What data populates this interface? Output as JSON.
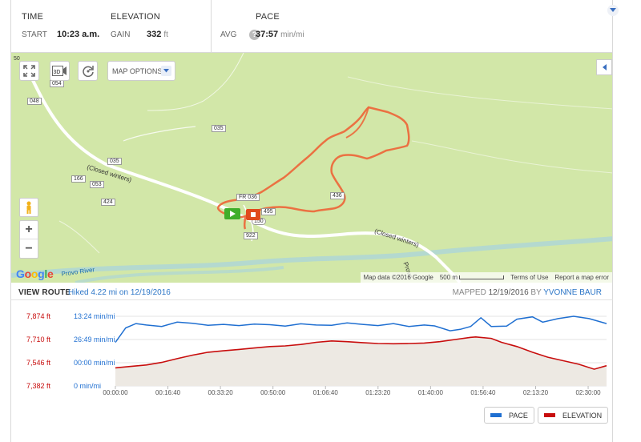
{
  "stats": {
    "time_label": "TIME",
    "start_label": "START",
    "start_value": "10:23 a.m.",
    "elevation_label": "ELEVATION",
    "gain_label": "GAIN",
    "gain_value": "332",
    "gain_unit": "ft",
    "pace_label": "PACE",
    "avg_label": "AVG",
    "avg_help": "?",
    "avg_value": "37:57",
    "avg_unit": "min/mi"
  },
  "map": {
    "options_label": "MAP OPTIONS",
    "btn_3d": "3D",
    "road_labels": [
      "054",
      "048",
      "035",
      "035",
      "166",
      "053",
      "424",
      "436",
      "922",
      "FR 036",
      "150",
      "495",
      "50"
    ],
    "closed_winters": "(Closed winters)",
    "provo_river": "Provo River",
    "provo_road": "Provo",
    "google_logo": "Google",
    "attribution": {
      "map_data": "Map data ©2016 Google",
      "scale": "500 m",
      "terms": "Terms of Use",
      "report": "Report a map error"
    }
  },
  "route_bar": {
    "title": "VIEW ROUTE",
    "hiked": "Hiked 4.22 mi on 12/19/2016",
    "mapped_label": "MAPPED",
    "mapped_date": "12/19/2016",
    "by_label": "BY",
    "mapped_user": "YVONNE BAUR"
  },
  "legend": {
    "pace": "PACE",
    "elevation": "ELEVATION",
    "pace_color": "#1f6fd1",
    "elevation_color": "#c80d0d"
  },
  "chart_data": {
    "type": "line",
    "x_unit": "elapsed time",
    "x_ticks": [
      "00:00:00",
      "00:16:40",
      "00:33:20",
      "00:50:00",
      "01:06:40",
      "01:23:20",
      "01:40:00",
      "01:56:40",
      "02:13:20",
      "02:30:00"
    ],
    "xlim_seconds": [
      0,
      9540
    ],
    "y_left_ticks": [
      "7,874 ft",
      "7,710 ft",
      "7,546 ft",
      "7,382 ft"
    ],
    "ylim_left": [
      7382,
      7874
    ],
    "y_right_ticks": [
      "13:24 min/mi",
      "26:49 min/mi",
      "00:00 min/mi",
      "0 min/mi"
    ],
    "grid": true,
    "series": [
      {
        "name": "ELEVATION",
        "color": "#c80d0d",
        "axis": "left",
        "fill": true,
        "x_seconds": [
          0,
          300,
          600,
          900,
          1200,
          1500,
          1800,
          2100,
          2400,
          2700,
          3000,
          3300,
          3600,
          3900,
          4200,
          4500,
          4800,
          5100,
          5400,
          5700,
          6000,
          6300,
          6600,
          6900,
          7000,
          7300,
          7500,
          7800,
          8100,
          8400,
          8700,
          9000,
          9300,
          9540
        ],
        "values": [
          7510,
          7520,
          7530,
          7548,
          7575,
          7600,
          7620,
          7630,
          7640,
          7650,
          7660,
          7665,
          7675,
          7690,
          7700,
          7695,
          7688,
          7682,
          7680,
          7682,
          7685,
          7695,
          7710,
          7725,
          7728,
          7718,
          7690,
          7660,
          7620,
          7585,
          7560,
          7535,
          7500,
          7525
        ]
      },
      {
        "name": "PACE",
        "color": "#1f6fd1",
        "axis": "right",
        "x_seconds": [
          0,
          200,
          400,
          600,
          900,
          1200,
          1500,
          1800,
          2100,
          2400,
          2700,
          3000,
          3300,
          3600,
          3900,
          4200,
          4500,
          4800,
          5100,
          5400,
          5700,
          6000,
          6200,
          6500,
          6700,
          6900,
          7100,
          7300,
          7600,
          7800,
          8100,
          8300,
          8600,
          8900,
          9200,
          9540
        ],
        "values_sec_per_mi": [
          1500,
          2000,
          2150,
          2100,
          2050,
          2200,
          2160,
          2090,
          2120,
          2080,
          2130,
          2110,
          2060,
          2140,
          2100,
          2090,
          2170,
          2120,
          2080,
          2150,
          2050,
          2100,
          2070,
          1900,
          1950,
          2050,
          2350,
          2050,
          2060,
          2300,
          2380,
          2200,
          2320,
          2400,
          2320,
          2150
        ]
      }
    ]
  }
}
